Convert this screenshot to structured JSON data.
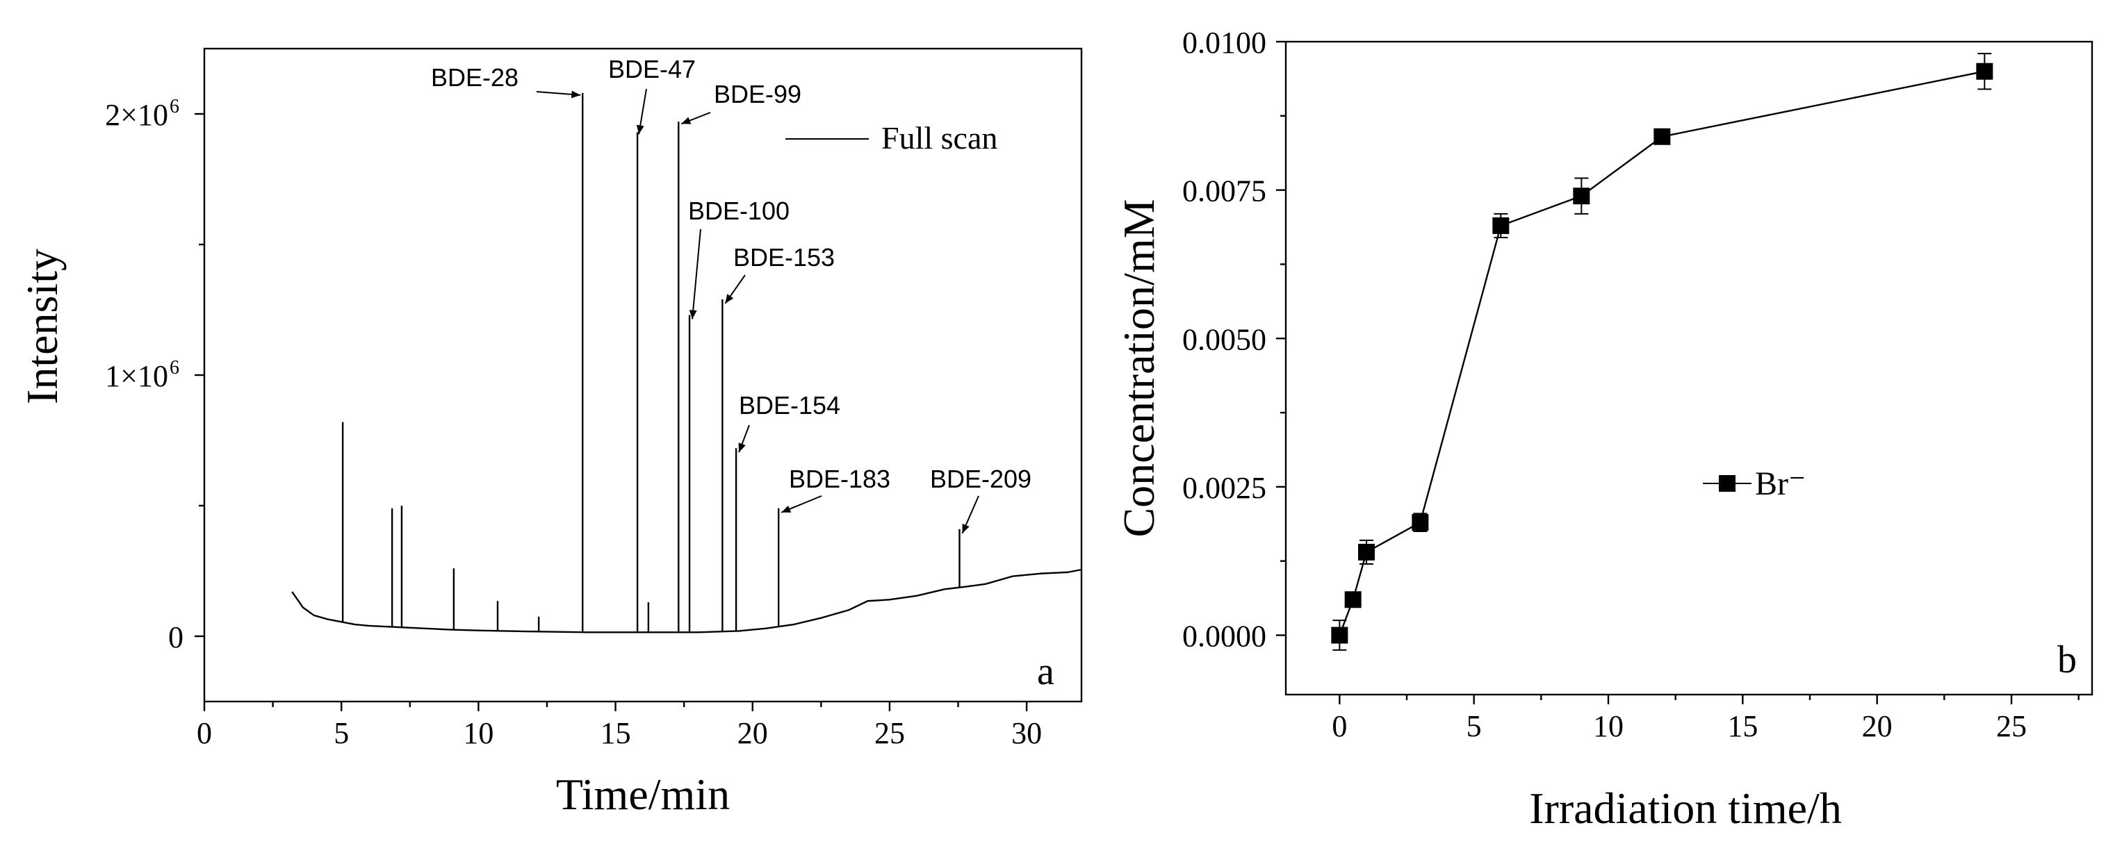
{
  "chart_data": [
    {
      "id": "a",
      "type": "line",
      "title": "",
      "panel_label": "a",
      "xlabel": "Time/min",
      "ylabel": "Intensity",
      "xlim": [
        0,
        32
      ],
      "ylim": [
        -250000,
        2250000
      ],
      "x_ticks": [
        0,
        5,
        10,
        15,
        20,
        25,
        30
      ],
      "x_tick_labels": [
        "0",
        "5",
        "10",
        "15",
        "20",
        "25",
        "30"
      ],
      "y_ticks": [
        0,
        1000000,
        2000000
      ],
      "y_tick_labels": [
        {
          "base": "0",
          "exp": ""
        },
        {
          "base": "1×10",
          "exp": "6"
        },
        {
          "base": "2×10",
          "exp": "6"
        }
      ],
      "legend": {
        "entries": [
          "Full scan"
        ],
        "position": "top-right"
      },
      "baseline": [
        [
          3.2,
          170000
        ],
        [
          3.6,
          110000
        ],
        [
          4.0,
          80000
        ],
        [
          4.5,
          65000
        ],
        [
          5.0,
          55000
        ],
        [
          5.5,
          45000
        ],
        [
          6.0,
          40000
        ],
        [
          7.0,
          35000
        ],
        [
          8.0,
          30000
        ],
        [
          9.0,
          25000
        ],
        [
          10.0,
          22000
        ],
        [
          12.0,
          18000
        ],
        [
          14.0,
          15000
        ],
        [
          16.0,
          15000
        ],
        [
          18.0,
          15000
        ],
        [
          19.5,
          20000
        ],
        [
          20.5,
          30000
        ],
        [
          21.5,
          45000
        ],
        [
          22.5,
          70000
        ],
        [
          23.5,
          100000
        ],
        [
          24.2,
          135000
        ],
        [
          25.0,
          140000
        ],
        [
          26.0,
          155000
        ],
        [
          27.0,
          180000
        ],
        [
          27.8,
          190000
        ],
        [
          28.5,
          200000
        ],
        [
          29.5,
          230000
        ],
        [
          30.5,
          240000
        ],
        [
          31.5,
          245000
        ],
        [
          32.0,
          255000
        ]
      ],
      "peaks": [
        {
          "x": 5.05,
          "y": 820000
        },
        {
          "x": 6.85,
          "y": 490000
        },
        {
          "x": 7.2,
          "y": 500000
        },
        {
          "x": 9.1,
          "y": 260000
        },
        {
          "x": 10.7,
          "y": 135000
        },
        {
          "x": 12.2,
          "y": 75000
        },
        {
          "x": 13.8,
          "y": 2080000
        },
        {
          "x": 15.8,
          "y": 1930000
        },
        {
          "x": 16.2,
          "y": 130000
        },
        {
          "x": 17.3,
          "y": 1970000
        },
        {
          "x": 17.7,
          "y": 1230000
        },
        {
          "x": 18.9,
          "y": 1290000
        },
        {
          "x": 19.4,
          "y": 720000
        },
        {
          "x": 20.95,
          "y": 490000
        },
        {
          "x": 27.55,
          "y": 410000
        }
      ],
      "annotations": [
        {
          "label": "BDE-28",
          "x": 13.8,
          "y": 2080000
        },
        {
          "label": "BDE-47",
          "x": 15.8,
          "y": 1930000
        },
        {
          "label": "BDE-99",
          "x": 17.3,
          "y": 1970000
        },
        {
          "label": "BDE-100",
          "x": 17.7,
          "y": 1230000
        },
        {
          "label": "BDE-153",
          "x": 18.9,
          "y": 1290000
        },
        {
          "label": "BDE-154",
          "x": 19.4,
          "y": 720000
        },
        {
          "label": "BDE-183",
          "x": 20.95,
          "y": 490000
        },
        {
          "label": "BDE-209",
          "x": 27.55,
          "y": 410000
        }
      ]
    },
    {
      "id": "b",
      "type": "line",
      "title": "",
      "panel_label": "b",
      "xlabel": "Irradiation time/h",
      "ylabel": "Concentration/mM",
      "xlim": [
        -2,
        28
      ],
      "ylim": [
        -0.001,
        0.01
      ],
      "x_ticks": [
        0,
        5,
        10,
        15,
        20,
        25
      ],
      "x_tick_labels": [
        "0",
        "5",
        "10",
        "15",
        "20",
        "25"
      ],
      "y_ticks": [
        0,
        0.0025,
        0.005,
        0.0075,
        0.01
      ],
      "y_tick_labels": [
        "0.0000",
        "0.0025",
        "0.0050",
        "0.0075",
        "0.0100"
      ],
      "legend": {
        "entries": [
          "Br⁻"
        ],
        "position": "center-right"
      },
      "series": [
        {
          "name": "Br⁻",
          "marker": "square",
          "x": [
            0,
            0.5,
            1,
            3,
            6,
            9,
            12,
            24
          ],
          "y": [
            0.0,
            0.0006,
            0.0014,
            0.0019,
            0.0069,
            0.0074,
            0.0084,
            0.0095
          ],
          "err": [
            0.00025,
            0.0001,
            0.0002,
            0.00015,
            0.0002,
            0.0003,
            0.0001,
            0.0003
          ]
        }
      ]
    }
  ]
}
